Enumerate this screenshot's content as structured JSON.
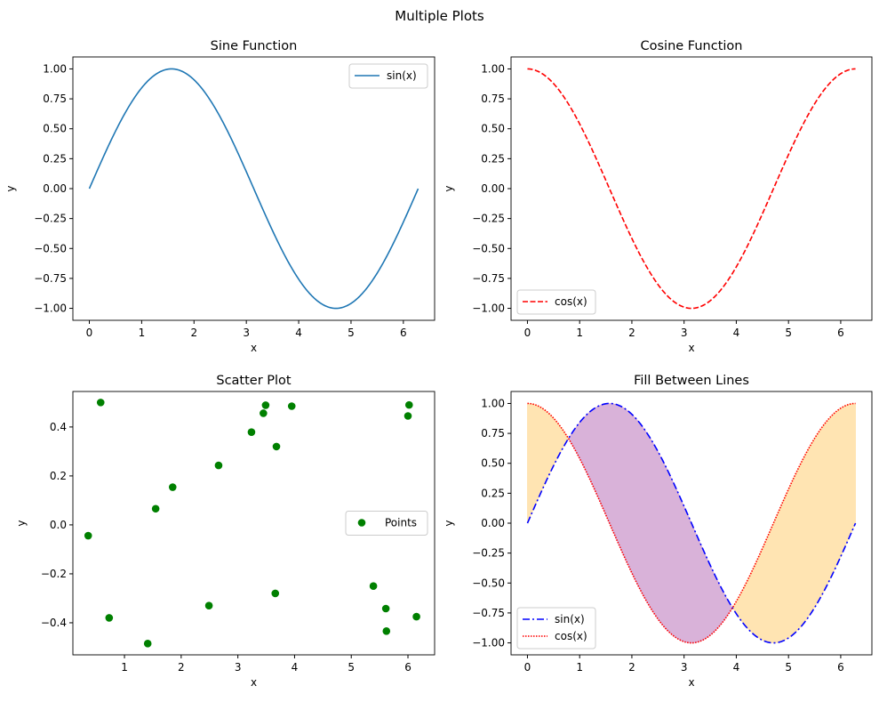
{
  "suptitle": "Multiple Plots",
  "chart_data": [
    {
      "type": "line",
      "title": "Sine Function",
      "xlabel": "x",
      "ylabel": "y",
      "xlim": [
        -0.314,
        6.597
      ],
      "ylim": [
        -1.1,
        1.1
      ],
      "xticks": [
        0,
        1,
        2,
        3,
        4,
        5,
        6
      ],
      "yticks": [
        -1.0,
        -0.75,
        -0.5,
        -0.25,
        0.0,
        0.25,
        0.5,
        0.75,
        1.0
      ],
      "ytick_format": 2,
      "series": [
        {
          "name": "sin(x)",
          "func": "sin",
          "x_range": [
            0,
            6.283
          ],
          "color": "#1f77b4",
          "dash": ""
        }
      ],
      "legend": "upper-right"
    },
    {
      "type": "line",
      "title": "Cosine Function",
      "xlabel": "x",
      "ylabel": "y",
      "xlim": [
        -0.314,
        6.597
      ],
      "ylim": [
        -1.1,
        1.1
      ],
      "xticks": [
        0,
        1,
        2,
        3,
        4,
        5,
        6
      ],
      "yticks": [
        -1.0,
        -0.75,
        -0.5,
        -0.25,
        0.0,
        0.25,
        0.5,
        0.75,
        1.0
      ],
      "ytick_format": 2,
      "series": [
        {
          "name": "cos(x)",
          "func": "cos",
          "x_range": [
            0,
            6.283
          ],
          "color": "#ff0000",
          "dash": "6,2.5"
        }
      ],
      "legend": "lower-left"
    },
    {
      "type": "scatter",
      "title": "Scatter Plot",
      "xlabel": "x",
      "ylabel": "y",
      "xlim": [
        0.09,
        6.47
      ],
      "ylim": [
        -0.531,
        0.545
      ],
      "xticks": [
        1,
        2,
        3,
        4,
        5,
        6
      ],
      "yticks": [
        -0.4,
        -0.2,
        0.0,
        0.2,
        0.4
      ],
      "ytick_format": 1,
      "series": [
        {
          "name": "Points",
          "color": "#008000",
          "x": [
            0.36,
            0.58,
            0.73,
            1.41,
            1.55,
            1.85,
            2.49,
            2.66,
            3.24,
            3.45,
            3.49,
            3.68,
            3.66,
            3.95,
            5.39,
            5.61,
            5.62,
            6.0,
            6.02,
            6.15
          ],
          "y": [
            -0.044,
            0.5,
            -0.38,
            -0.485,
            0.066,
            0.154,
            -0.33,
            0.243,
            0.379,
            0.456,
            0.489,
            0.32,
            -0.28,
            0.485,
            -0.25,
            -0.342,
            -0.434,
            0.445,
            0.49,
            -0.375
          ]
        }
      ],
      "legend": "center-right"
    },
    {
      "type": "area",
      "title": "Fill Between Lines",
      "xlabel": "x",
      "ylabel": "y",
      "xlim": [
        -0.314,
        6.597
      ],
      "ylim": [
        -1.1,
        1.1
      ],
      "xticks": [
        0,
        1,
        2,
        3,
        4,
        5,
        6
      ],
      "yticks": [
        -1.0,
        -0.75,
        -0.5,
        -0.25,
        0.0,
        0.25,
        0.5,
        0.75,
        1.0
      ],
      "ytick_format": 2,
      "series": [
        {
          "name": "sin(x)",
          "func": "sin",
          "x_range": [
            0,
            6.283
          ],
          "color": "#0000ff",
          "dash": "8,3,2,3"
        },
        {
          "name": "cos(x)",
          "func": "cos",
          "x_range": [
            0,
            6.283
          ],
          "color": "#ff0000",
          "dash": "1.5,1.5"
        }
      ],
      "fill": {
        "where_sin_above": "#800080",
        "where_cos_above": "#ffa500",
        "alpha": 0.3
      },
      "legend": "lower-left"
    }
  ]
}
